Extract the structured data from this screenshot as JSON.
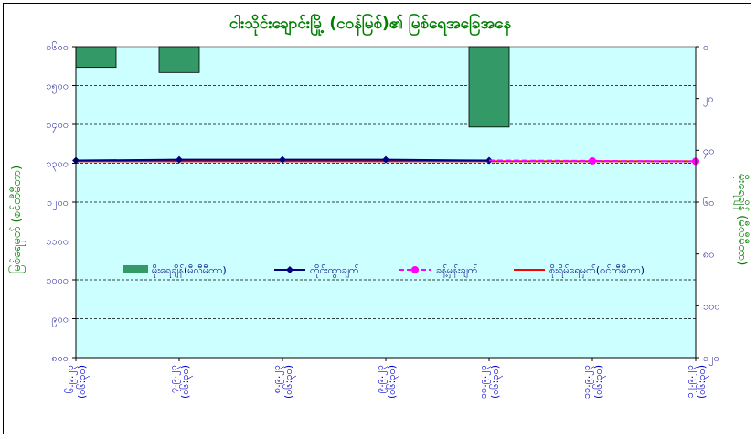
{
  "chart_data": {
    "type": "combo",
    "title": "ငါးသိုင်းချောင်းမြို့ (ငဝန်မြစ်)၏ မြစ်ရေအခြေအနေ",
    "ylabel_left": "မြစ်ရေမှတ် (စင်တီမီတာ)",
    "ylabel_right": "မိုးရေချိန် (မီလီမီတာ)",
    "categories": [
      "၆.၉.၂၃ (၀၆:၃၀)",
      "၇.၉.၂၃ (၀၆:၃၀)",
      "၈.၉.၂၃ (၀၆:၃၀)",
      "၉.၉.၂၃ (၀၆:၃၀)",
      "၁၀.၉.၂၃ (၀၆:၃၀)",
      "၁၁.၉.၂၃ (၀၆:၃၀)",
      "၁၂.၉.၂၃ (၀၆:၃၀)"
    ],
    "left_axis": {
      "min": 800,
      "max": 1600,
      "step": 100,
      "tick_labels": [
        "၈၀၀",
        "၉၀၀",
        "၁၀၀၀",
        "၁၁၀၀",
        "၁၂၀၀",
        "၁၃၀၀",
        "၁၄၀၀",
        "၁၅၀၀",
        "၁၆၀၀"
      ]
    },
    "right_axis": {
      "min": 0,
      "max": 120,
      "step": 20,
      "reversed": true,
      "tick_labels": [
        "၀",
        "၂၀",
        "၄၀",
        "၆၀",
        "၈၀",
        "၁၀၀",
        "၁၂၀"
      ]
    },
    "series": [
      {
        "name": "မိုးရေချိန်(မီလီမီတာ)",
        "kind": "bar",
        "axis": "right",
        "color": "#339966",
        "values": [
          8,
          10,
          null,
          null,
          31,
          null,
          null
        ]
      },
      {
        "name": "တိုင်းထွာချက်",
        "kind": "line",
        "axis": "left",
        "color": "#000080",
        "marker": "diamond",
        "values": [
          1307,
          1309,
          1309,
          1309,
          1307,
          null,
          null
        ]
      },
      {
        "name": "ခန့်မှန်းချက်",
        "kind": "line",
        "axis": "left",
        "color": "#ff00ff",
        "dash": true,
        "marker": "circle",
        "values": [
          null,
          null,
          null,
          null,
          1307,
          1306,
          1305
        ]
      },
      {
        "name": "စိုးရိမ်ရေမှတ်(စင်တီမီတာ)",
        "kind": "line",
        "axis": "left",
        "color": "#ff0000",
        "values": [
          1305,
          1305,
          1305,
          1305,
          1305,
          1305,
          1305
        ]
      }
    ],
    "grid": true,
    "legend_position": "inside-middle",
    "plot_background": "#ccffff"
  }
}
